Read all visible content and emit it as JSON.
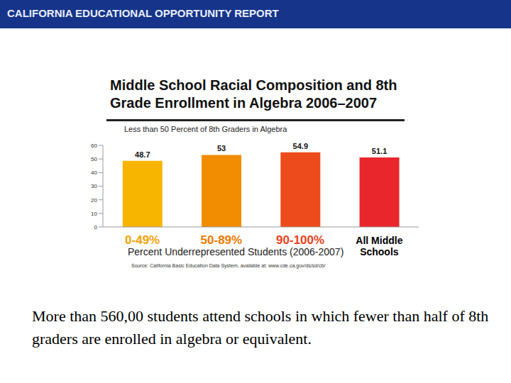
{
  "header": "CALIFORNIA EDUCATIONAL OPPORTUNITY REPORT",
  "chart_data": {
    "type": "bar",
    "title": "Middle School Racial Composition and 8th Grade Enrollment in Algebra 2006–2007",
    "subtitle": "Less than 50 Percent of 8th Graders in Algebra",
    "categories": [
      "0-49%",
      "50-89%",
      "90-100%",
      "All Middle Schools"
    ],
    "values": [
      48.7,
      53,
      54.9,
      51.1
    ],
    "colors": [
      "#f7b500",
      "#f28c00",
      "#ee4b1c",
      "#e8262b"
    ],
    "ylim": [
      0,
      60
    ],
    "yticks": [
      0,
      10,
      20,
      30,
      40,
      50,
      60
    ],
    "x_label": "Percent Underrepresented Students (2006-2007)",
    "source": "Source: California Basic Education Data System, available at: www.cde.ca.gov/ds/sd/cb/",
    "data_labels": true,
    "grid": false
  },
  "caption": "More than 560,00 students attend schools in which fewer than half of 8th graders are enrolled in algebra or equivalent."
}
